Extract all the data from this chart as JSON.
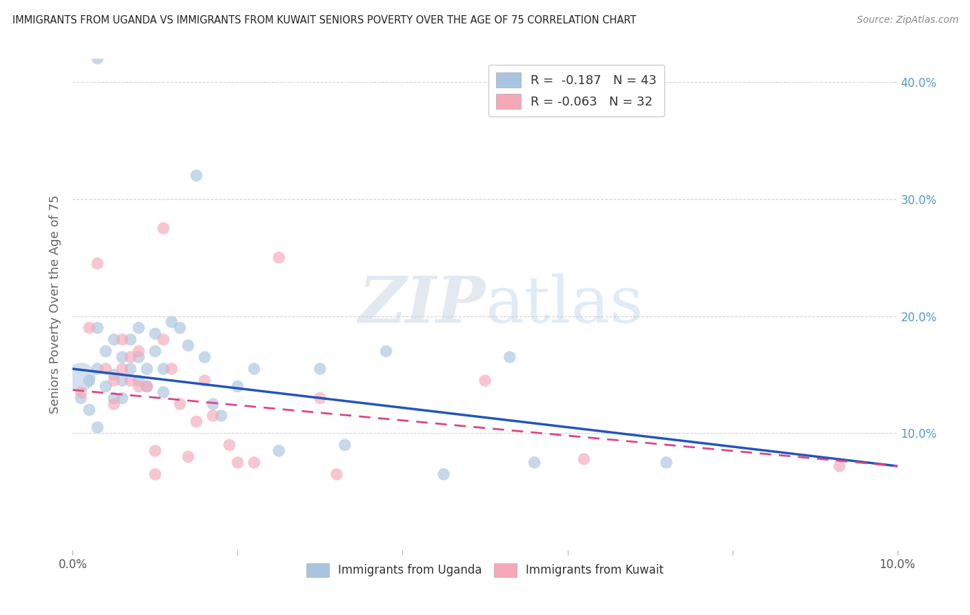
{
  "title": "IMMIGRANTS FROM UGANDA VS IMMIGRANTS FROM KUWAIT SENIORS POVERTY OVER THE AGE OF 75 CORRELATION CHART",
  "source": "Source: ZipAtlas.com",
  "xlabel_uganda": "Immigrants from Uganda",
  "xlabel_kuwait": "Immigrants from Kuwait",
  "ylabel": "Seniors Poverty Over the Age of 75",
  "watermark_zip": "ZIP",
  "watermark_atlas": "atlas",
  "xlim": [
    0.0,
    0.1
  ],
  "ylim": [
    0.0,
    0.42
  ],
  "r_uganda": -0.187,
  "n_uganda": 43,
  "r_kuwait": -0.063,
  "n_kuwait": 32,
  "uganda_color": "#a8c4e0",
  "kuwait_color": "#f4a8b8",
  "uganda_line_color": "#2255bb",
  "kuwait_line_color": "#dd4488",
  "background_color": "#ffffff",
  "uganda_line_x": [
    0.0,
    0.1
  ],
  "uganda_line_y": [
    0.155,
    0.072
  ],
  "kuwait_line_x": [
    0.0,
    0.1
  ],
  "kuwait_line_y": [
    0.137,
    0.072
  ],
  "uganda_x": [
    0.001,
    0.002,
    0.002,
    0.003,
    0.003,
    0.003,
    0.004,
    0.004,
    0.005,
    0.005,
    0.005,
    0.006,
    0.006,
    0.006,
    0.007,
    0.007,
    0.008,
    0.008,
    0.008,
    0.009,
    0.009,
    0.01,
    0.01,
    0.011,
    0.011,
    0.012,
    0.013,
    0.014,
    0.015,
    0.016,
    0.017,
    0.018,
    0.02,
    0.022,
    0.025,
    0.03,
    0.033,
    0.038,
    0.045,
    0.053,
    0.056,
    0.072,
    0.003
  ],
  "uganda_y": [
    0.13,
    0.12,
    0.145,
    0.105,
    0.155,
    0.19,
    0.14,
    0.17,
    0.13,
    0.15,
    0.18,
    0.145,
    0.165,
    0.13,
    0.18,
    0.155,
    0.165,
    0.145,
    0.19,
    0.155,
    0.14,
    0.17,
    0.185,
    0.135,
    0.155,
    0.195,
    0.19,
    0.175,
    0.32,
    0.165,
    0.125,
    0.115,
    0.14,
    0.155,
    0.085,
    0.155,
    0.09,
    0.17,
    0.065,
    0.165,
    0.075,
    0.075,
    0.42
  ],
  "kuwait_x": [
    0.001,
    0.002,
    0.003,
    0.004,
    0.005,
    0.005,
    0.006,
    0.006,
    0.007,
    0.007,
    0.008,
    0.008,
    0.009,
    0.01,
    0.01,
    0.011,
    0.011,
    0.012,
    0.013,
    0.014,
    0.015,
    0.016,
    0.017,
    0.019,
    0.02,
    0.022,
    0.025,
    0.03,
    0.032,
    0.05,
    0.062,
    0.093
  ],
  "kuwait_y": [
    0.135,
    0.19,
    0.245,
    0.155,
    0.145,
    0.125,
    0.18,
    0.155,
    0.145,
    0.165,
    0.17,
    0.14,
    0.14,
    0.085,
    0.065,
    0.275,
    0.18,
    0.155,
    0.125,
    0.08,
    0.11,
    0.145,
    0.115,
    0.09,
    0.075,
    0.075,
    0.25,
    0.13,
    0.065,
    0.145,
    0.078,
    0.072
  ],
  "uganda_large_x": [
    0.001
  ],
  "uganda_large_y": [
    0.155
  ],
  "uganda_large_s": [
    800
  ]
}
